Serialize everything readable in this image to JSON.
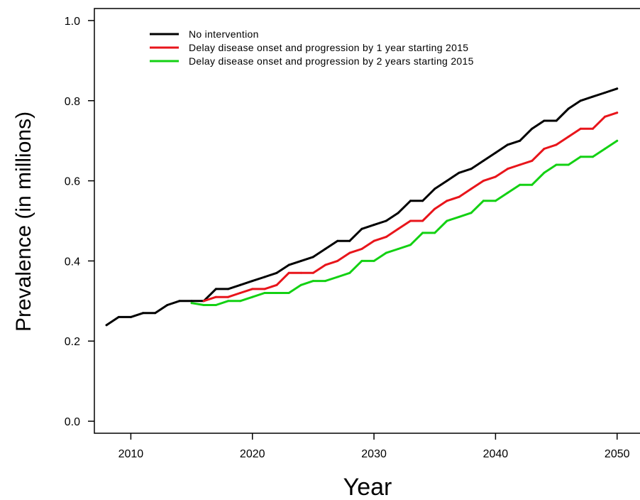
{
  "chart_data": {
    "type": "line",
    "title": "",
    "xlabel": "Year",
    "ylabel": "Prevalence (in millions)",
    "xlim": [
      2007,
      2052
    ],
    "ylim": [
      -0.03,
      1.03
    ],
    "xticks": [
      "2010",
      "2020",
      "2030",
      "2040",
      "2050"
    ],
    "yticks": [
      "0.0",
      "0.2",
      "0.4",
      "0.6",
      "0.8",
      "1.0"
    ],
    "grid": false,
    "legend_position": "top-left",
    "series": [
      {
        "name": "No intervention",
        "color": "#000000",
        "x": [
          2008,
          2009,
          2010,
          2011,
          2012,
          2013,
          2014,
          2015,
          2016,
          2017,
          2018,
          2019,
          2020,
          2021,
          2022,
          2023,
          2024,
          2025,
          2026,
          2027,
          2028,
          2029,
          2030,
          2031,
          2032,
          2033,
          2034,
          2035,
          2036,
          2037,
          2038,
          2039,
          2040,
          2041,
          2042,
          2043,
          2044,
          2045,
          2046,
          2047,
          2048,
          2049,
          2050
        ],
        "values": [
          0.24,
          0.26,
          0.26,
          0.27,
          0.27,
          0.29,
          0.3,
          0.3,
          0.3,
          0.33,
          0.33,
          0.34,
          0.35,
          0.36,
          0.37,
          0.39,
          0.4,
          0.41,
          0.43,
          0.45,
          0.45,
          0.48,
          0.49,
          0.5,
          0.52,
          0.55,
          0.55,
          0.58,
          0.6,
          0.62,
          0.63,
          0.65,
          0.67,
          0.69,
          0.7,
          0.73,
          0.75,
          0.75,
          0.78,
          0.8,
          0.81,
          0.82,
          0.83
        ]
      },
      {
        "name": "Delay disease onset and progression by 1 year starting 2015",
        "color": "#e8151b",
        "x": [
          2016,
          2017,
          2018,
          2019,
          2020,
          2021,
          2022,
          2023,
          2024,
          2025,
          2026,
          2027,
          2028,
          2029,
          2030,
          2031,
          2032,
          2033,
          2034,
          2035,
          2036,
          2037,
          2038,
          2039,
          2040,
          2041,
          2042,
          2043,
          2044,
          2045,
          2046,
          2047,
          2048,
          2049,
          2050
        ],
        "values": [
          0.3,
          0.31,
          0.31,
          0.32,
          0.33,
          0.33,
          0.34,
          0.37,
          0.37,
          0.37,
          0.39,
          0.4,
          0.42,
          0.43,
          0.45,
          0.46,
          0.48,
          0.5,
          0.5,
          0.53,
          0.55,
          0.56,
          0.58,
          0.6,
          0.61,
          0.63,
          0.64,
          0.65,
          0.68,
          0.69,
          0.71,
          0.73,
          0.73,
          0.76,
          0.77
        ]
      },
      {
        "name": "Delay disease onset and progression by 2 years starting 2015",
        "color": "#13d113",
        "x": [
          2015,
          2016,
          2017,
          2018,
          2019,
          2020,
          2021,
          2022,
          2023,
          2024,
          2025,
          2026,
          2027,
          2028,
          2029,
          2030,
          2031,
          2032,
          2033,
          2034,
          2035,
          2036,
          2037,
          2038,
          2039,
          2040,
          2041,
          2042,
          2043,
          2044,
          2045,
          2046,
          2047,
          2048,
          2049,
          2050
        ],
        "values": [
          0.295,
          0.29,
          0.29,
          0.3,
          0.3,
          0.31,
          0.32,
          0.32,
          0.32,
          0.34,
          0.35,
          0.35,
          0.36,
          0.37,
          0.4,
          0.4,
          0.42,
          0.43,
          0.44,
          0.47,
          0.47,
          0.5,
          0.51,
          0.52,
          0.55,
          0.55,
          0.57,
          0.59,
          0.59,
          0.62,
          0.64,
          0.64,
          0.66,
          0.66,
          0.68,
          0.7
        ]
      }
    ]
  }
}
